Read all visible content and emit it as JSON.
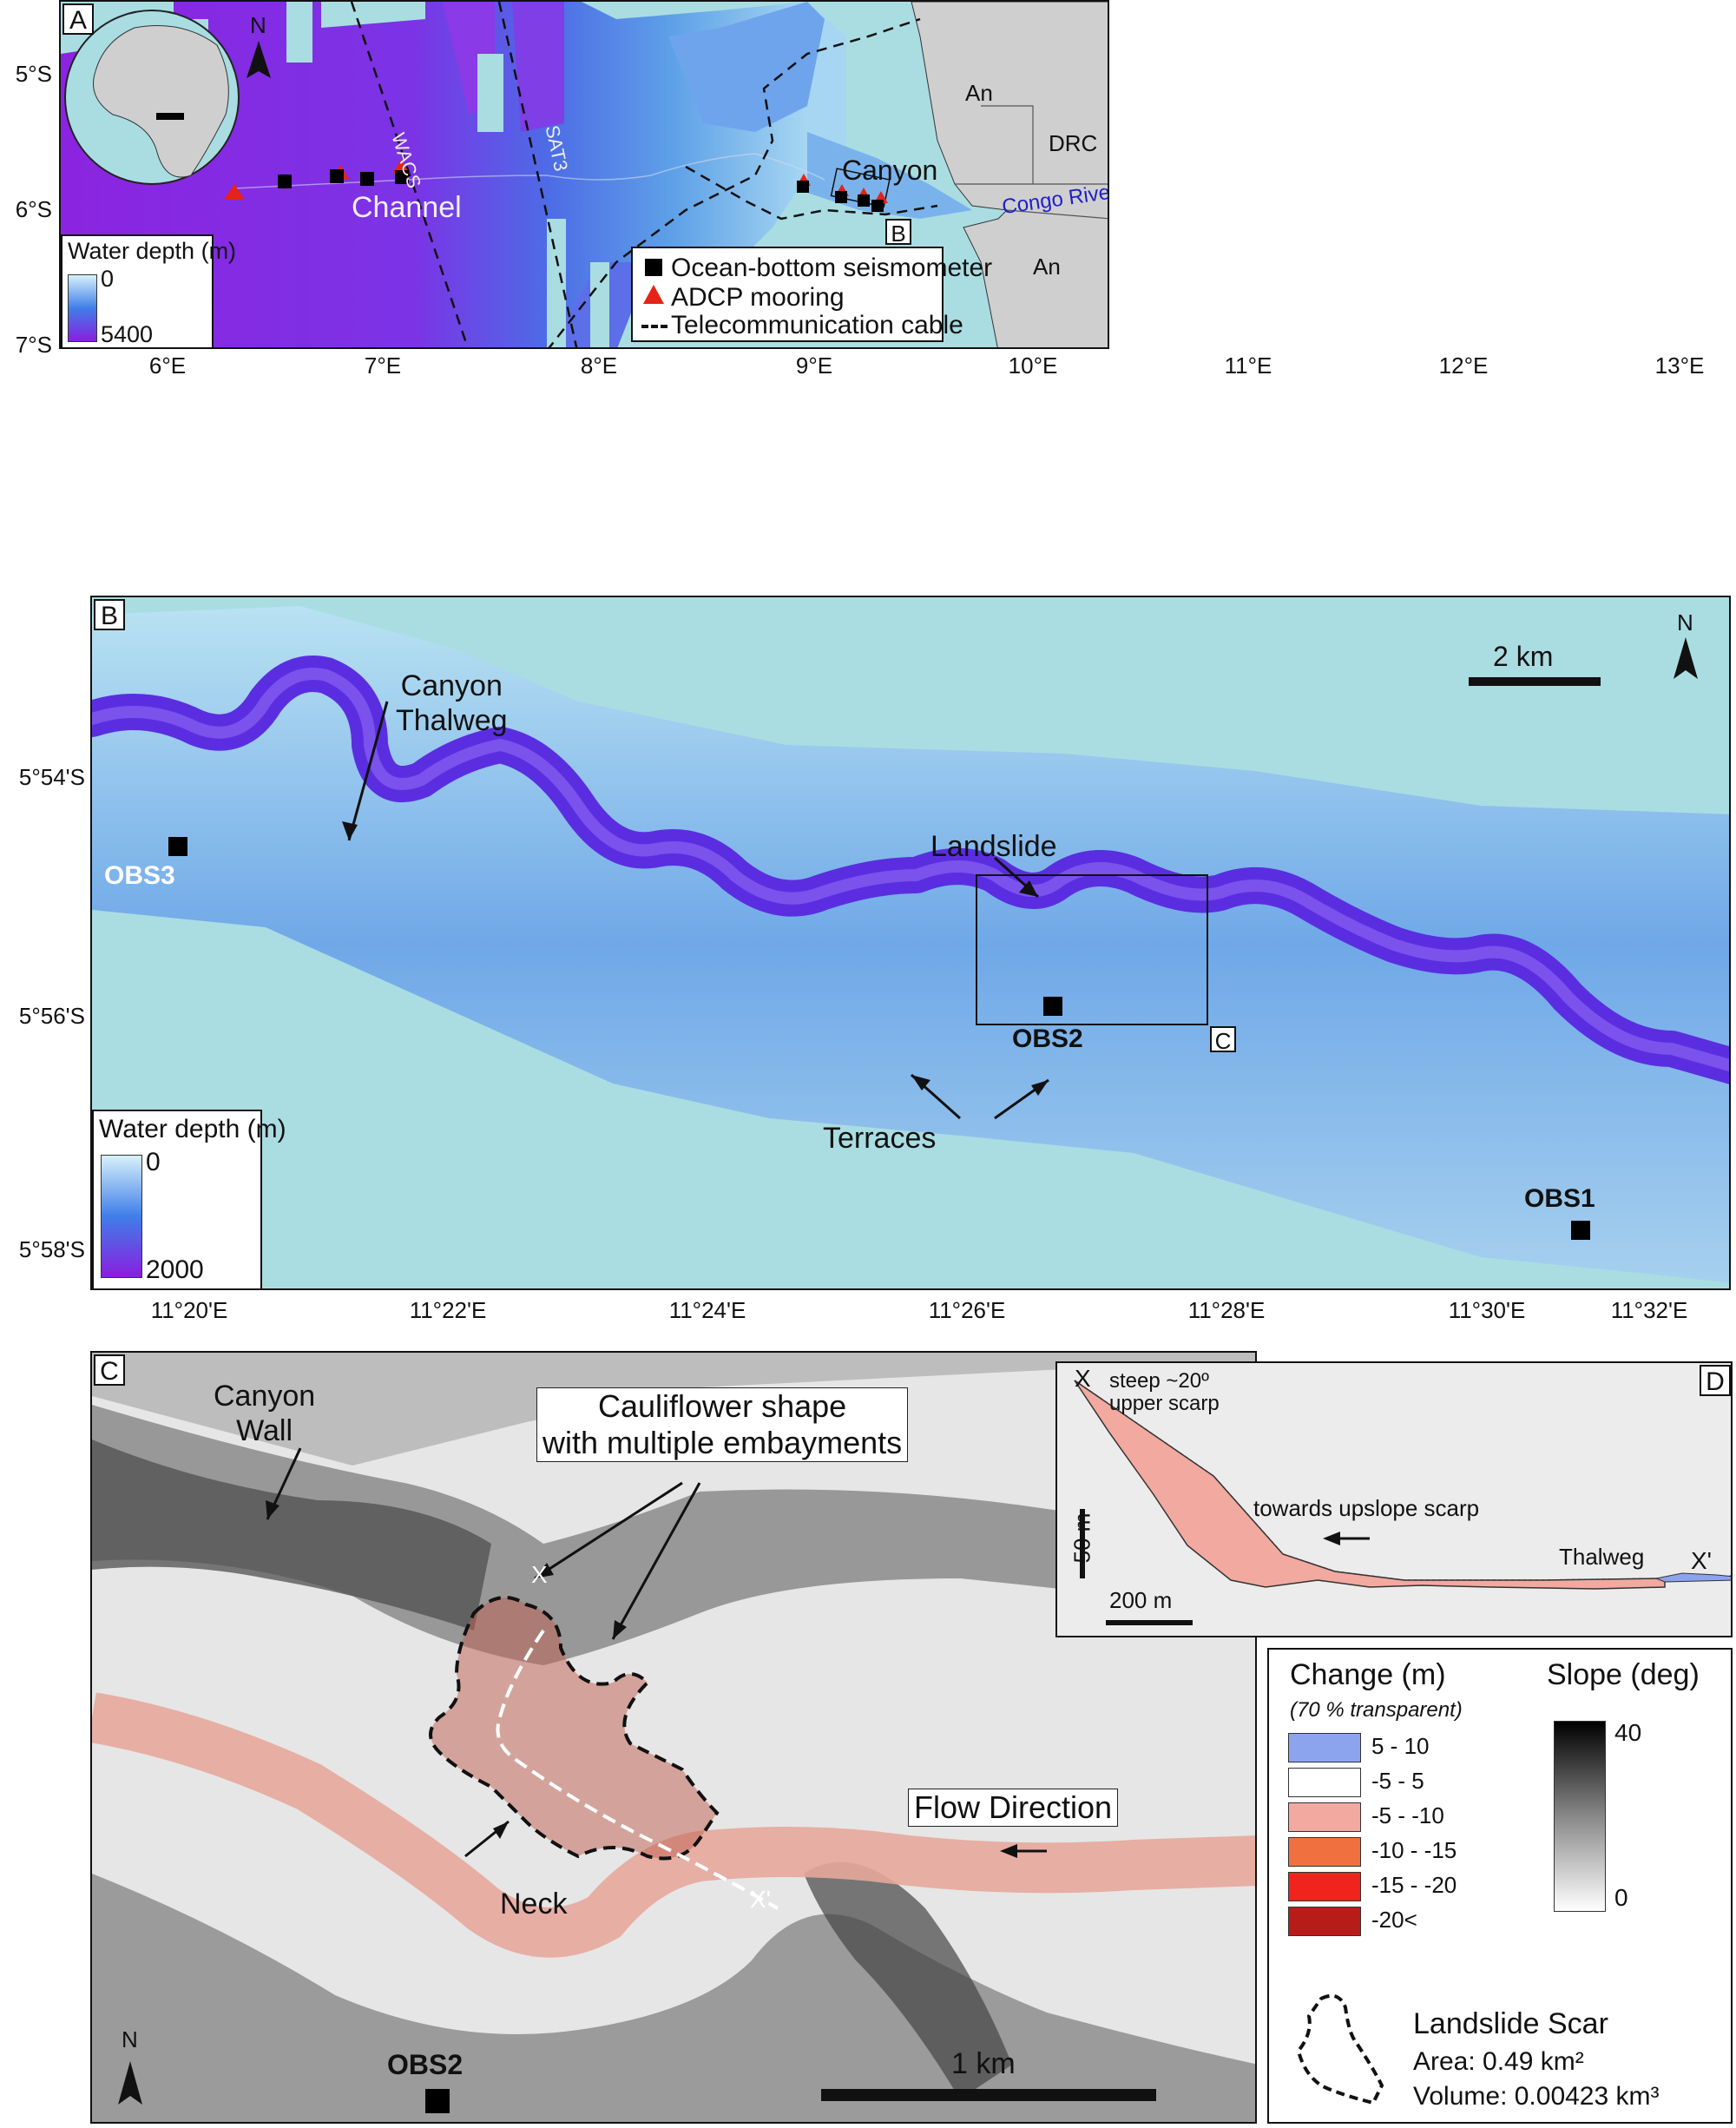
{
  "panel_a": {
    "letter": "A",
    "north": "N",
    "legend_title": "Water depth (m)",
    "legend_min": "0",
    "legend_max": "5400",
    "gradient_top": "#d7f1fb",
    "gradient_mid": "#3f7ee8",
    "gradient_bottom": "#8a1ee0",
    "labels": {
      "channel": "Channel",
      "canyon": "Canyon",
      "wacs": "WACS",
      "sat3": "SAT3",
      "an_north": "An",
      "drc": "DRC",
      "an_south": "An",
      "congo_river": "Congo River",
      "inset_b": "B"
    },
    "key": {
      "obs": "Ocean-bottom seismometer",
      "adcp": "ADCP mooring",
      "cable": "Telecommunication cable"
    },
    "x_ticks": [
      "6°E",
      "7°E",
      "8°E",
      "9°E",
      "10°E",
      "11°E",
      "12°E",
      "13°E"
    ],
    "y_ticks": [
      "5°S",
      "6°S",
      "7°S"
    ]
  },
  "panel_b": {
    "letter": "B",
    "north": "N",
    "scale_label": "2 km",
    "legend_title": "Water depth (m)",
    "legend_min": "0",
    "legend_max": "2000",
    "labels": {
      "canyon_thalweg": "Canyon\nThalweg",
      "landslide": "Landslide",
      "terraces": "Terraces",
      "obs1": "OBS1",
      "obs2": "OBS2",
      "obs3": "OBS3",
      "inset_c": "C"
    },
    "x_ticks": [
      "11°20'E",
      "11°22'E",
      "11°24'E",
      "11°26'E",
      "11°28'E",
      "11°30'E",
      "11°32'E"
    ],
    "y_ticks": [
      "5°54'S",
      "5°56'S",
      "5°58'S"
    ]
  },
  "panel_c": {
    "letter": "C",
    "north": "N",
    "canyon_wall": "Canyon\nWall",
    "cauliflower": "Cauliflower shape\nwith multiple embayments",
    "flow_direction": "Flow Direction",
    "neck": "Neck",
    "x_label": "X",
    "x_prime_label": "X'",
    "obs2": "OBS2",
    "scale_label": "1 km"
  },
  "panel_d": {
    "letter": "D",
    "x_label": "X",
    "x_prime_label": "X'",
    "steep_label": "steep ~20º\nupper scarp",
    "towards_label": "towards upslope scarp",
    "thalweg_label": "Thalweg",
    "vscale_label": "50 m",
    "hscale_label": "200 m"
  },
  "legend_c": {
    "change_title": "Change (m)",
    "change_subtitle": "(70 % transparent)",
    "slope_title": "Slope (deg)",
    "slope_max": "40",
    "slope_min": "0",
    "classes": [
      {
        "label": "5 - 10",
        "color": "#8ca3ee"
      },
      {
        "label": "-5 - 5",
        "color": "#ffffff"
      },
      {
        "label": "-5 - -10",
        "color": "#f2a9a0"
      },
      {
        "label": "-10 - -15",
        "color": "#f07040"
      },
      {
        "label": "-15 - -20",
        "color": "#f0241c"
      },
      {
        "label": "-20<",
        "color": "#b81c18"
      }
    ],
    "scar_title": "Landslide Scar",
    "scar_area": "Area: 0.49 km²",
    "scar_volume": "Volume: 0.00423 km³"
  }
}
